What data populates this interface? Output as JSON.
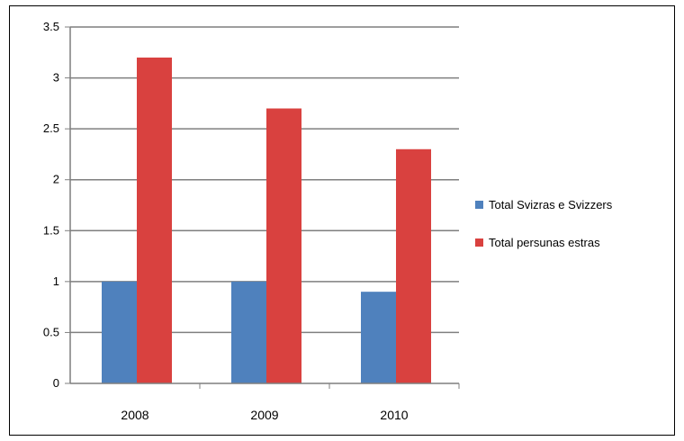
{
  "chart_data": {
    "type": "bar",
    "title": "",
    "xlabel": "",
    "ylabel": "",
    "categories": [
      "2008",
      "2009",
      "2010"
    ],
    "series": [
      {
        "name": "Total Svizras e Svizzers",
        "values": [
          1,
          1,
          0.9
        ],
        "color": "#4f81bd"
      },
      {
        "name": "Total persunas estras",
        "values": [
          3.2,
          2.7,
          2.3
        ],
        "color": "#d9413f"
      }
    ],
    "ylim": [
      0,
      3.5
    ],
    "yticks": [
      "0",
      "0.5",
      "1",
      "1.5",
      "2",
      "2.5",
      "3",
      "3.5"
    ],
    "grid": true,
    "legend_position": "right"
  }
}
